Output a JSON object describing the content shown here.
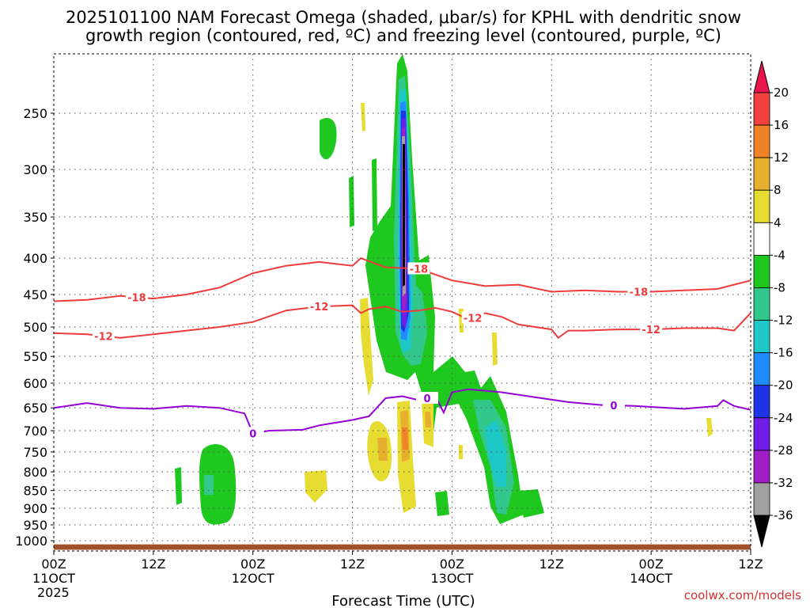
{
  "chart_data": {
    "type": "heatmap",
    "title_line1": "2025101100 NAM Forecast Omega (shaded, μbar/s) for KPHL with dendritic snow",
    "title_line2": "growth region (contoured, red, ºC) and freezing level (contoured, purple, ºC)",
    "xlabel": "Forecast Time (UTC)",
    "ylabel": "",
    "credit": "coolwx.com/models",
    "x_unit": "hours since 2025101100",
    "xlim": [
      0,
      84
    ],
    "ylim_hPa": [
      1030,
      200
    ],
    "x_ticks": [
      {
        "x": 0,
        "l1": "00Z",
        "l2": "11OCT",
        "l3": "2025"
      },
      {
        "x": 12,
        "l1": "12Z",
        "l2": "",
        "l3": ""
      },
      {
        "x": 24,
        "l1": "00Z",
        "l2": "12OCT",
        "l3": ""
      },
      {
        "x": 36,
        "l1": "12Z",
        "l2": "",
        "l3": ""
      },
      {
        "x": 48,
        "l1": "00Z",
        "l2": "13OCT",
        "l3": ""
      },
      {
        "x": 60,
        "l1": "12Z",
        "l2": "",
        "l3": ""
      },
      {
        "x": 72,
        "l1": "00Z",
        "l2": "14OCT",
        "l3": ""
      },
      {
        "x": 84,
        "l1": "12Z",
        "l2": "",
        "l3": ""
      }
    ],
    "y_ticks": [
      250,
      300,
      350,
      400,
      450,
      500,
      550,
      600,
      650,
      700,
      750,
      800,
      850,
      900,
      950,
      1000
    ],
    "y_tick_labels": [
      "250",
      "300",
      "350",
      "400",
      "450",
      "500",
      "550",
      "600",
      "650",
      "700",
      "750",
      "800",
      "850",
      "900",
      "950",
      "1000"
    ],
    "colorbar": {
      "labels": [
        "20",
        "16",
        "12",
        "8",
        "4",
        "-4",
        "-8",
        "-12",
        "-16",
        "-20",
        "-24",
        "-28",
        "-32",
        "-36"
      ],
      "values": [
        20,
        16,
        12,
        8,
        4,
        -4,
        -8,
        -12,
        -16,
        -20,
        -24,
        -28,
        -32,
        -36
      ],
      "bin_colors": [
        "#e8144b",
        "#f04040",
        "#f08228",
        "#e6af2d",
        "#e6dc32",
        "#ffffff",
        "#1ec81e",
        "#32c88c",
        "#1ec8c8",
        "#1e8cff",
        "#1e32e6",
        "#6e1ee6",
        "#a01ec8",
        "#a0a0a0",
        "#000000"
      ]
    },
    "series": [
      {
        "name": "-18",
        "kind": "isotherm",
        "color": "#ee3b3b",
        "points": [
          [
            0,
            460
          ],
          [
            4,
            458
          ],
          [
            8,
            452
          ],
          [
            12,
            456
          ],
          [
            16,
            450
          ],
          [
            20,
            440
          ],
          [
            24,
            420
          ],
          [
            28,
            410
          ],
          [
            32,
            405
          ],
          [
            36,
            410
          ],
          [
            37,
            400
          ],
          [
            40,
            412
          ],
          [
            44,
            414
          ],
          [
            48,
            430
          ],
          [
            52,
            438
          ],
          [
            56,
            436
          ],
          [
            60,
            446
          ],
          [
            64,
            444
          ],
          [
            68,
            446
          ],
          [
            72,
            446
          ],
          [
            76,
            444
          ],
          [
            80,
            442
          ],
          [
            84,
            430
          ],
          [
            84.3,
            420
          ]
        ],
        "labels": [
          {
            "x": 10,
            "text": "-18"
          },
          {
            "x": 44,
            "text": "-18"
          },
          {
            "x": 70.5,
            "text": "-18"
          }
        ]
      },
      {
        "name": "-12",
        "kind": "isotherm",
        "color": "#ee3b3b",
        "points": [
          [
            0,
            510
          ],
          [
            4,
            512
          ],
          [
            8,
            518
          ],
          [
            12,
            512
          ],
          [
            16,
            506
          ],
          [
            20,
            500
          ],
          [
            24,
            492
          ],
          [
            28,
            474
          ],
          [
            32,
            468
          ],
          [
            36,
            466
          ],
          [
            37,
            478
          ],
          [
            38,
            472
          ],
          [
            40,
            468
          ],
          [
            42,
            476
          ],
          [
            44,
            474
          ],
          [
            46,
            470
          ],
          [
            48,
            476
          ],
          [
            50,
            488
          ],
          [
            52,
            478
          ],
          [
            54,
            484
          ],
          [
            56,
            496
          ],
          [
            60,
            504
          ],
          [
            60.8,
            518
          ],
          [
            62,
            506
          ],
          [
            64,
            506
          ],
          [
            68,
            504
          ],
          [
            72,
            504
          ],
          [
            76,
            502
          ],
          [
            80,
            502
          ],
          [
            82,
            506
          ],
          [
            84,
            478
          ]
        ],
        "labels": [
          {
            "x": 6,
            "text": "-12"
          },
          {
            "x": 32,
            "text": "-12"
          },
          {
            "x": 50.5,
            "text": "-12"
          },
          {
            "x": 72,
            "text": "-12"
          }
        ]
      },
      {
        "name": "0",
        "kind": "freezing-level",
        "color": "#9400d3",
        "points": [
          [
            0,
            650
          ],
          [
            4,
            640
          ],
          [
            8,
            650
          ],
          [
            12,
            652
          ],
          [
            16,
            646
          ],
          [
            20,
            650
          ],
          [
            23,
            662
          ],
          [
            24,
            706
          ],
          [
            26,
            700
          ],
          [
            30,
            698
          ],
          [
            32,
            688
          ],
          [
            34,
            682
          ],
          [
            36,
            676
          ],
          [
            38,
            668
          ],
          [
            40,
            630
          ],
          [
            42,
            626
          ],
          [
            44,
            634
          ],
          [
            46,
            626
          ],
          [
            47,
            660
          ],
          [
            48,
            618
          ],
          [
            50,
            612
          ],
          [
            54,
            618
          ],
          [
            58,
            628
          ],
          [
            62,
            638
          ],
          [
            66,
            644
          ],
          [
            70,
            646
          ],
          [
            74,
            650
          ],
          [
            76,
            652
          ],
          [
            80,
            646
          ],
          [
            80.7,
            634
          ],
          [
            82,
            646
          ],
          [
            84,
            654
          ]
        ],
        "labels": [
          {
            "x": 24,
            "text": "0"
          },
          {
            "x": 45,
            "text": "0"
          },
          {
            "x": 67.5,
            "text": "0"
          }
        ]
      }
    ],
    "surface_band_hPa": [
      1012,
      1030
    ]
  }
}
